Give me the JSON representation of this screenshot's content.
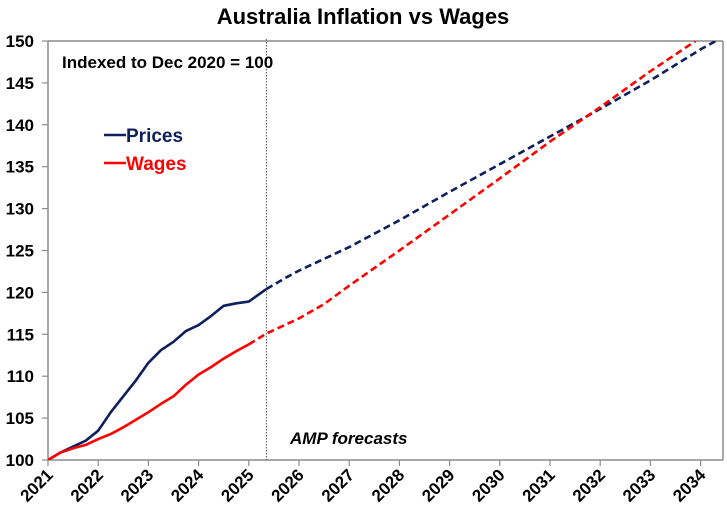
{
  "chart_data": {
    "type": "line",
    "title": "Australia Inflation vs Wages",
    "subtitle": "Indexed to Dec 2020 = 100",
    "xlabel": "",
    "ylabel": "",
    "xlim": [
      2021,
      2034.46
    ],
    "ylim": [
      100,
      150
    ],
    "yticks": [
      100,
      105,
      110,
      115,
      120,
      125,
      130,
      135,
      140,
      145,
      150
    ],
    "xticks": [
      2021,
      2022,
      2023,
      2024,
      2025,
      2026,
      2027,
      2028,
      2029,
      2030,
      2031,
      2032,
      2033,
      2034
    ],
    "xtick_labels": [
      "2021",
      "2022",
      "2023",
      "2024",
      "2025",
      "2026",
      "2027",
      "2028",
      "2029",
      "2030",
      "2031",
      "2032",
      "2033",
      "2034"
    ],
    "grid": false,
    "legend_position": "top-left",
    "forecast_divider_x": 2025.35,
    "annotations": [
      {
        "text": "Indexed to Dec 2020 = 100",
        "x": 2021.3,
        "y": 147.6
      },
      {
        "text": "AMP forecasts",
        "x": 2025.55,
        "y": 102.3
      }
    ],
    "series": [
      {
        "name": "Prices",
        "color": "#0d1f5c",
        "actual": [
          [
            2021.0,
            100
          ],
          [
            2021.25,
            100.9
          ],
          [
            2021.5,
            101.6
          ],
          [
            2021.75,
            102.3
          ],
          [
            2022.0,
            103.5
          ],
          [
            2022.25,
            105.7
          ],
          [
            2022.5,
            107.6
          ],
          [
            2022.75,
            109.5
          ],
          [
            2023.0,
            111.6
          ],
          [
            2023.25,
            113.1
          ],
          [
            2023.5,
            114.1
          ],
          [
            2023.75,
            115.4
          ],
          [
            2024.0,
            116.1
          ],
          [
            2024.25,
            117.2
          ],
          [
            2024.5,
            118.4
          ],
          [
            2024.75,
            118.7
          ],
          [
            2025.0,
            118.9
          ],
          [
            2025.35,
            120.4
          ]
        ],
        "forecast": [
          [
            2025.35,
            120.4
          ],
          [
            2025.75,
            121.8
          ],
          [
            2026.0,
            122.6
          ],
          [
            2027.0,
            125.4
          ],
          [
            2028.0,
            128.6
          ],
          [
            2029.0,
            132.0
          ],
          [
            2030.0,
            135.3
          ],
          [
            2031.0,
            138.6
          ],
          [
            2032.0,
            141.9
          ],
          [
            2033.0,
            145.3
          ],
          [
            2034.0,
            149.0
          ],
          [
            2034.3,
            150.0
          ]
        ]
      },
      {
        "name": "Wages",
        "color": "#ff0000",
        "actual": [
          [
            2021.0,
            100
          ],
          [
            2021.25,
            100.9
          ],
          [
            2021.5,
            101.4
          ],
          [
            2021.75,
            101.8
          ],
          [
            2022.0,
            102.5
          ],
          [
            2022.25,
            103.1
          ],
          [
            2022.5,
            103.9
          ],
          [
            2022.75,
            104.8
          ],
          [
            2023.0,
            105.7
          ],
          [
            2023.25,
            106.7
          ],
          [
            2023.5,
            107.6
          ],
          [
            2023.75,
            109.0
          ],
          [
            2024.0,
            110.2
          ],
          [
            2024.25,
            111.1
          ],
          [
            2024.5,
            112.1
          ],
          [
            2024.75,
            113.0
          ],
          [
            2025.0,
            113.8
          ]
        ],
        "forecast": [
          [
            2025.0,
            113.8
          ],
          [
            2025.35,
            115.1
          ],
          [
            2026.0,
            116.9
          ],
          [
            2026.5,
            118.6
          ],
          [
            2027.0,
            120.8
          ],
          [
            2028.0,
            125.0
          ],
          [
            2029.0,
            129.3
          ],
          [
            2030.0,
            133.6
          ],
          [
            2031.0,
            138.0
          ],
          [
            2032.0,
            142.1
          ],
          [
            2033.0,
            146.4
          ],
          [
            2033.9,
            150.0
          ]
        ]
      }
    ]
  }
}
